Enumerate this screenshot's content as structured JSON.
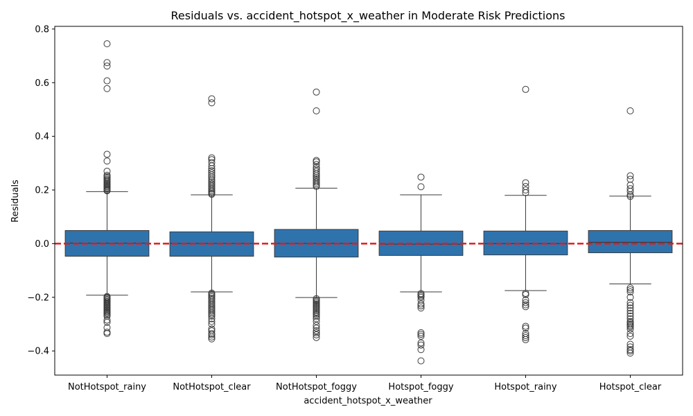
{
  "chart_data": {
    "type": "box",
    "title": "Residuals vs. accident_hotspot_x_weather in Moderate Risk Predictions",
    "xlabel": "accident_hotspot_x_weather",
    "ylabel": "Residuals",
    "ylim": [
      -0.49,
      0.81
    ],
    "yticks": [
      -0.4,
      -0.2,
      0.0,
      0.2,
      0.4,
      0.6,
      0.8
    ],
    "ytick_labels": [
      "−0.4",
      "−0.2",
      "0.0",
      "0.2",
      "0.4",
      "0.6",
      "0.8"
    ],
    "reference_line": {
      "y": 0.0,
      "style": "dashed",
      "color": "#e31a1c"
    },
    "box_color": "#2f73ad",
    "edge_color": "#3a3a3a",
    "grid": false,
    "categories": [
      "NotHotspot_rainy",
      "NotHotspot_clear",
      "NotHotspot_foggy",
      "Hotspot_foggy",
      "Hotspot_rainy",
      "Hotspot_clear"
    ],
    "boxes": [
      {
        "category": "NotHotspot_rainy",
        "whisker_low": -0.192,
        "q1": -0.047,
        "median": 0.002,
        "q3": 0.049,
        "whisker_high": 0.194,
        "outliers": [
          0.745,
          0.675,
          0.662,
          0.607,
          0.578,
          0.333,
          0.308,
          0.27,
          0.255,
          0.25,
          0.245,
          0.24,
          0.236,
          0.232,
          0.228,
          0.224,
          0.22,
          0.216,
          0.212,
          0.208,
          0.204,
          0.2,
          0.197,
          -0.197,
          -0.2,
          -0.204,
          -0.208,
          -0.212,
          -0.216,
          -0.22,
          -0.224,
          -0.228,
          -0.232,
          -0.236,
          -0.24,
          -0.244,
          -0.248,
          -0.252,
          -0.256,
          -0.26,
          -0.265,
          -0.27,
          -0.285,
          -0.293,
          -0.313,
          -0.33,
          -0.335
        ]
      },
      {
        "category": "NotHotspot_clear",
        "whisker_low": -0.18,
        "q1": -0.047,
        "median": 0.001,
        "q3": 0.044,
        "whisker_high": 0.182,
        "outliers": [
          0.54,
          0.525,
          0.32,
          0.313,
          0.302,
          0.29,
          0.28,
          0.272,
          0.264,
          0.256,
          0.248,
          0.24,
          0.234,
          0.228,
          0.222,
          0.216,
          0.21,
          0.204,
          0.198,
          0.193,
          0.188,
          0.184,
          -0.184,
          -0.188,
          -0.193,
          -0.198,
          -0.204,
          -0.21,
          -0.216,
          -0.222,
          -0.228,
          -0.234,
          -0.24,
          -0.246,
          -0.252,
          -0.258,
          -0.264,
          -0.27,
          -0.28,
          -0.29,
          -0.3,
          -0.318,
          -0.325,
          -0.335,
          -0.34,
          -0.348,
          -0.355
        ]
      },
      {
        "category": "NotHotspot_foggy",
        "whisker_low": -0.201,
        "q1": -0.05,
        "median": 0.001,
        "q3": 0.053,
        "whisker_high": 0.207,
        "outliers": [
          0.565,
          0.495,
          0.31,
          0.305,
          0.295,
          0.285,
          0.278,
          0.27,
          0.262,
          0.255,
          0.248,
          0.242,
          0.236,
          0.23,
          0.224,
          0.218,
          0.213,
          -0.205,
          -0.21,
          -0.215,
          -0.22,
          -0.225,
          -0.23,
          -0.235,
          -0.24,
          -0.245,
          -0.25,
          -0.255,
          -0.26,
          -0.265,
          -0.272,
          -0.28,
          -0.29,
          -0.305,
          -0.315,
          -0.325,
          -0.332,
          -0.34,
          -0.35
        ]
      },
      {
        "category": "Hotspot_foggy",
        "whisker_low": -0.18,
        "q1": -0.044,
        "median": -0.002,
        "q3": 0.047,
        "whisker_high": 0.182,
        "outliers": [
          0.248,
          0.212,
          -0.186,
          -0.19,
          -0.195,
          -0.2,
          -0.21,
          -0.225,
          -0.232,
          -0.24,
          -0.332,
          -0.338,
          -0.345,
          -0.37,
          -0.378,
          -0.395,
          -0.437
        ]
      },
      {
        "category": "Hotspot_rainy",
        "whisker_low": -0.175,
        "q1": -0.042,
        "median": 0.0,
        "q3": 0.047,
        "whisker_high": 0.18,
        "outliers": [
          0.575,
          0.227,
          0.213,
          0.2,
          0.19,
          -0.185,
          -0.19,
          -0.21,
          -0.22,
          -0.228,
          -0.235,
          -0.308,
          -0.315,
          -0.335,
          -0.343,
          -0.35,
          -0.358
        ]
      },
      {
        "category": "Hotspot_clear",
        "whisker_low": -0.15,
        "q1": -0.034,
        "median": 0.005,
        "q3": 0.049,
        "whisker_high": 0.177,
        "outliers": [
          0.495,
          0.253,
          0.24,
          0.218,
          0.205,
          0.195,
          0.182,
          0.176,
          -0.165,
          -0.172,
          -0.18,
          -0.2,
          -0.22,
          -0.23,
          -0.24,
          -0.25,
          -0.26,
          -0.27,
          -0.28,
          -0.29,
          -0.295,
          -0.3,
          -0.305,
          -0.31,
          -0.318,
          -0.335,
          -0.345,
          -0.375,
          -0.385,
          -0.395,
          -0.4,
          -0.408
        ]
      }
    ]
  }
}
